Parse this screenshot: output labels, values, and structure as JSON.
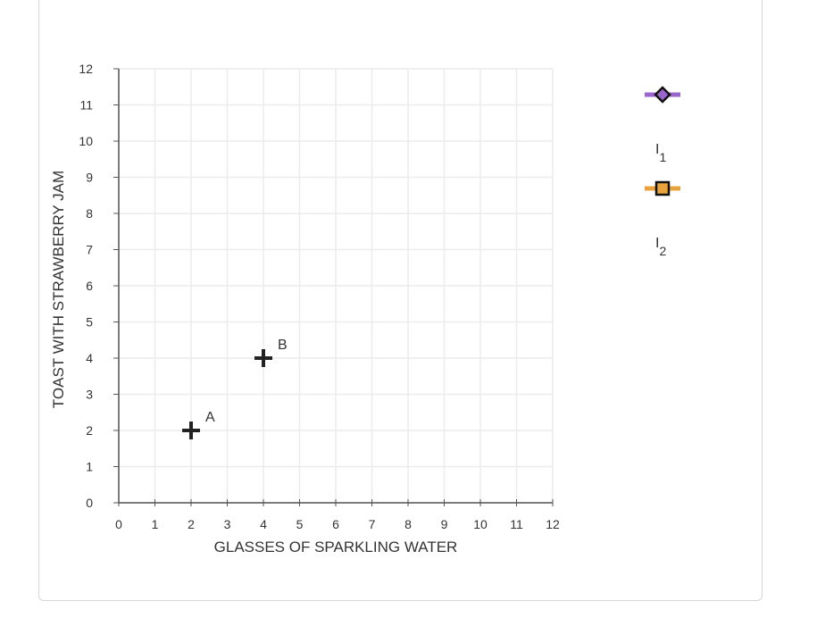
{
  "chart_data": {
    "type": "scatter",
    "title": "",
    "xlabel": "GLASSES OF SPARKLING WATER",
    "ylabel": "TOAST WITH STRAWBERRY JAM",
    "xlim": [
      0,
      12
    ],
    "ylim": [
      0,
      12
    ],
    "x_ticks": [
      0,
      1,
      2,
      3,
      4,
      5,
      6,
      7,
      8,
      9,
      10,
      11,
      12
    ],
    "y_ticks": [
      0,
      1,
      2,
      3,
      4,
      5,
      6,
      7,
      8,
      9,
      10,
      11,
      12
    ],
    "grid": true,
    "points": [
      {
        "label": "A",
        "x": 2,
        "y": 2
      },
      {
        "label": "B",
        "x": 4,
        "y": 4
      }
    ],
    "legend_placement": "right",
    "legend": [
      {
        "base": "I",
        "sub": "1",
        "line_color": "#9966cc",
        "marker": "diamond",
        "marker_fill": "#9966cc"
      },
      {
        "base": "I",
        "sub": "2",
        "line_color": "#e8a33d",
        "marker": "square",
        "marker_fill": "#e8a33d"
      }
    ]
  }
}
